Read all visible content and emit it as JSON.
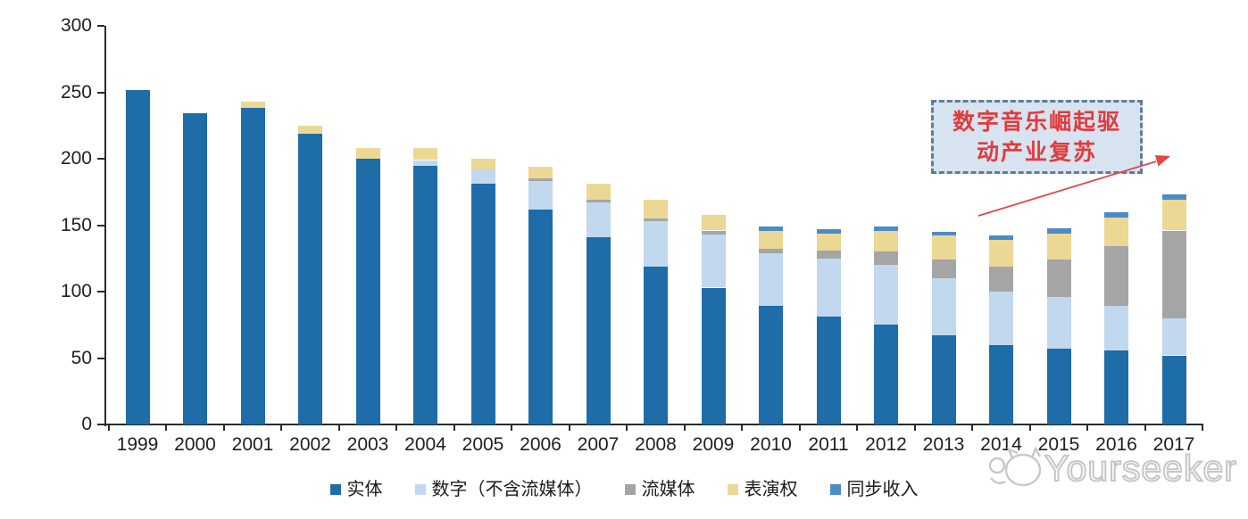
{
  "chart_data": {
    "type": "bar",
    "stacked": true,
    "categories": [
      "1999",
      "2000",
      "2001",
      "2002",
      "2003",
      "2004",
      "2005",
      "2006",
      "2007",
      "2008",
      "2009",
      "2010",
      "2011",
      "2012",
      "2013",
      "2014",
      "2015",
      "2016",
      "2017"
    ],
    "series": [
      {
        "key": "physical",
        "name": "实体",
        "color": "#1E6CA8",
        "values": [
          252,
          234,
          238,
          219,
          200,
          195,
          181,
          162,
          141,
          119,
          103,
          89,
          81,
          75,
          67,
          60,
          57,
          56,
          52
        ]
      },
      {
        "key": "digital_excl_streaming",
        "name": "数字（不含流媒体）",
        "color": "#C1D8EF",
        "values": [
          0,
          0,
          0,
          0,
          0,
          4,
          11,
          21,
          26,
          34,
          40,
          40,
          44,
          45,
          43,
          40,
          39,
          33,
          28
        ]
      },
      {
        "key": "streaming",
        "name": "流媒体",
        "color": "#A5A5A5",
        "values": [
          0,
          0,
          0,
          0,
          0,
          0,
          0,
          2,
          2,
          2,
          3,
          3,
          6,
          10,
          14,
          19,
          28,
          45,
          66
        ]
      },
      {
        "key": "performance_rights",
        "name": "表演权",
        "color": "#EAD894",
        "values": [
          0,
          0,
          5,
          6,
          8,
          9,
          8,
          9,
          12,
          14,
          12,
          14,
          13,
          16,
          18,
          20,
          20,
          22,
          23
        ]
      },
      {
        "key": "synchronisation",
        "name": "同步收入",
        "color": "#4C8BC6",
        "values": [
          0,
          0,
          0,
          0,
          0,
          0,
          0,
          0,
          0,
          0,
          0,
          3,
          3,
          3,
          3,
          3,
          4,
          4,
          4
        ]
      }
    ],
    "ylim": [
      0,
      300
    ],
    "yticks": [
      0,
      50,
      100,
      150,
      200,
      250,
      300
    ],
    "grid": false,
    "legend_position": "bottom",
    "axis_color": "#2b2b2b"
  },
  "annotation": {
    "text": "数字音乐崛起驱动产业复苏",
    "lines": [
      "数字音乐崛起驱",
      "动产业复苏"
    ],
    "fill_color": "#d7e3f1",
    "border_color": "#5f7c99",
    "text_color": "#e23b3b",
    "arrow_color": "#e84444"
  },
  "watermark": {
    "text": "Yourseeker",
    "logo": "cat-logo-icon",
    "color": "#c6c6c6"
  }
}
